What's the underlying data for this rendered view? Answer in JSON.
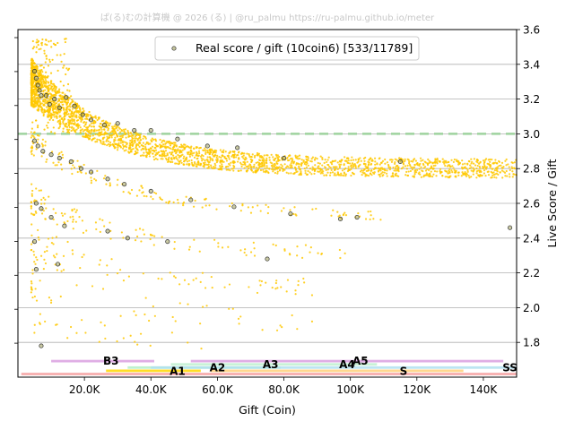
{
  "watermark": "ぱ(る)むの計算機 @ 2026 (る) | @ru_palmu  https://ru-palmu.github.io/meter",
  "chart_data": {
    "type": "scatter",
    "xlabel": "Gift (Coin)",
    "ylabel": "Live Score / Gift",
    "xlim": [
      0,
      150000
    ],
    "ylim": [
      1.6,
      3.6
    ],
    "x_ticks": [
      {
        "v": 20000,
        "label": "20.0K"
      },
      {
        "v": 40000,
        "label": "40.0K"
      },
      {
        "v": 60000,
        "label": "60.0K"
      },
      {
        "v": 80000,
        "label": "80.0K"
      },
      {
        "v": 100000,
        "label": "100K"
      },
      {
        "v": 120000,
        "label": "120K"
      },
      {
        "v": 140000,
        "label": "140K"
      }
    ],
    "y_ticks": [
      {
        "v": 1.8,
        "label": "1.8"
      },
      {
        "v": 2.0,
        "label": "2.0"
      },
      {
        "v": 2.2,
        "label": "2.2"
      },
      {
        "v": 2.4,
        "label": "2.4"
      },
      {
        "v": 2.6,
        "label": "2.6"
      },
      {
        "v": 2.8,
        "label": "2.8"
      },
      {
        "v": 3.0,
        "label": "3.0"
      },
      {
        "v": 3.2,
        "label": "3.2"
      },
      {
        "v": 3.4,
        "label": "3.4"
      },
      {
        "v": 3.6,
        "label": "3.6"
      }
    ],
    "grid": "horizontal",
    "reference_line": {
      "y": 3.0,
      "color": "#9fd39f"
    },
    "legend": {
      "position": "top-center",
      "label": "Real score / gift (10coin6) [533/11789]",
      "marker_fill": "#9e9e5a",
      "marker_edge": "#333333"
    },
    "series": [
      {
        "name": "Real score / gift (10coin6) [533/11789]",
        "color": "#ffc800",
        "edge_color": "#333333",
        "highlighted_points": [
          {
            "x": 5000,
            "y": 3.36
          },
          {
            "x": 5500,
            "y": 3.32
          },
          {
            "x": 6000,
            "y": 3.28
          },
          {
            "x": 6500,
            "y": 3.25
          },
          {
            "x": 7000,
            "y": 3.22
          },
          {
            "x": 8500,
            "y": 3.22
          },
          {
            "x": 9500,
            "y": 3.17
          },
          {
            "x": 11000,
            "y": 3.2
          },
          {
            "x": 12500,
            "y": 3.15
          },
          {
            "x": 14500,
            "y": 3.21
          },
          {
            "x": 17000,
            "y": 3.16
          },
          {
            "x": 19500,
            "y": 3.11
          },
          {
            "x": 22000,
            "y": 3.08
          },
          {
            "x": 26000,
            "y": 3.05
          },
          {
            "x": 30000,
            "y": 3.06
          },
          {
            "x": 35000,
            "y": 3.02
          },
          {
            "x": 40000,
            "y": 3.02
          },
          {
            "x": 48000,
            "y": 2.97
          },
          {
            "x": 57000,
            "y": 2.93
          },
          {
            "x": 66000,
            "y": 2.92
          },
          {
            "x": 80000,
            "y": 2.86
          },
          {
            "x": 5000,
            "y": 2.96
          },
          {
            "x": 6000,
            "y": 2.93
          },
          {
            "x": 7500,
            "y": 2.9
          },
          {
            "x": 10000,
            "y": 2.88
          },
          {
            "x": 12500,
            "y": 2.86
          },
          {
            "x": 16000,
            "y": 2.84
          },
          {
            "x": 19000,
            "y": 2.8
          },
          {
            "x": 22000,
            "y": 2.78
          },
          {
            "x": 27000,
            "y": 2.74
          },
          {
            "x": 32000,
            "y": 2.71
          },
          {
            "x": 40000,
            "y": 2.67
          },
          {
            "x": 52000,
            "y": 2.62
          },
          {
            "x": 65000,
            "y": 2.58
          },
          {
            "x": 82000,
            "y": 2.54
          },
          {
            "x": 97000,
            "y": 2.51
          },
          {
            "x": 5500,
            "y": 2.6
          },
          {
            "x": 7000,
            "y": 2.57
          },
          {
            "x": 10000,
            "y": 2.52
          },
          {
            "x": 14000,
            "y": 2.47
          },
          {
            "x": 33000,
            "y": 2.4
          },
          {
            "x": 45000,
            "y": 2.38
          },
          {
            "x": 75000,
            "y": 2.28
          },
          {
            "x": 148000,
            "y": 2.46
          },
          {
            "x": 115000,
            "y": 2.84
          },
          {
            "x": 5000,
            "y": 2.38
          },
          {
            "x": 5500,
            "y": 2.22
          },
          {
            "x": 12000,
            "y": 2.25
          },
          {
            "x": 7000,
            "y": 1.78
          },
          {
            "x": 27000,
            "y": 2.44
          },
          {
            "x": 102000,
            "y": 2.52
          }
        ]
      }
    ],
    "rank_bands": [
      {
        "label": "B3",
        "color": "#d9a0e0",
        "x_start": 10000,
        "x_end": 41000,
        "label_x": 28000,
        "level": 0,
        "label_level": 0
      },
      {
        "label": "A1",
        "color": "#ffd700",
        "x_start": 26500,
        "x_end": 55000,
        "label_x": 48000,
        "level": 3,
        "label_level": 3
      },
      {
        "label": "A2",
        "color": "#b3f0c8",
        "x_start": 33000,
        "x_end": 79000,
        "label_x": 60000,
        "level": 2,
        "label_level": 2
      },
      {
        "label": "A3",
        "color": "#c0f0d0",
        "x_start": 46000,
        "x_end": 108000,
        "label_x": 76000,
        "level": 1,
        "label_level": 1
      },
      {
        "label": "A4",
        "color": "#ffd07a",
        "x_start": 58000,
        "x_end": 134000,
        "label_x": 99000,
        "level": 3,
        "label_level": 1
      },
      {
        "label": "A5",
        "color": "#d9a0e0",
        "x_start": 52000,
        "x_end": 146000,
        "label_x": 103000,
        "level": 0,
        "label_level": 0
      },
      {
        "label": "S",
        "color": "#b0e0f0",
        "x_start": 40000,
        "x_end": 150000,
        "label_x": 116000,
        "level": 2,
        "label_level": 3
      },
      {
        "label": "SS",
        "color": "#f4a0a0",
        "x_start": 1000,
        "x_end": 150000,
        "label_x": 148000,
        "level": 4,
        "label_level": 2
      }
    ]
  }
}
